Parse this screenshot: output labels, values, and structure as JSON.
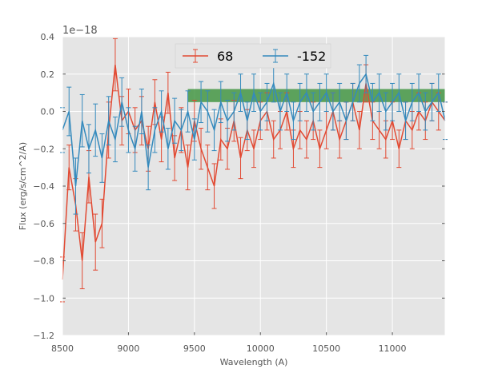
{
  "chart_data": {
    "type": "line",
    "title": "",
    "xlabel": "Wavelength (A)",
    "ylabel": "Flux (erg/s/cm^2/A)",
    "y_offset_text": "1e−18",
    "xlim": [
      8500,
      11400
    ],
    "ylim": [
      -1.2,
      0.4
    ],
    "x_ticks": [
      8500,
      9000,
      9500,
      10000,
      10500,
      11000
    ],
    "x_tick_labels": [
      "8500",
      "9000",
      "9500",
      "10000",
      "10500",
      "11000"
    ],
    "y_ticks": [
      -1.2,
      -1.0,
      -0.8,
      -0.6,
      -0.4,
      -0.2,
      0.0,
      0.2,
      0.4
    ],
    "y_tick_labels": [
      "−1.2",
      "−1.0",
      "−0.8",
      "−0.6",
      "−0.4",
      "−0.2",
      "0.0",
      "0.2",
      "0.4"
    ],
    "grid": true,
    "legend_position": "top-center",
    "band": {
      "x_range": [
        9450,
        11400
      ],
      "y_range": [
        0.05,
        0.12
      ],
      "color": "#2e8b2e",
      "label": ""
    },
    "series": [
      {
        "name": "68",
        "color": "#e24a33",
        "x": [
          8500,
          8550,
          8600,
          8650,
          8700,
          8750,
          8800,
          8850,
          8900,
          8950,
          9000,
          9050,
          9100,
          9150,
          9200,
          9250,
          9300,
          9350,
          9400,
          9450,
          9500,
          9550,
          9600,
          9650,
          9700,
          9750,
          9800,
          9850,
          9900,
          9950,
          10000,
          10050,
          10100,
          10150,
          10200,
          10250,
          10300,
          10350,
          10400,
          10450,
          10500,
          10550,
          10600,
          10650,
          10700,
          10750,
          10800,
          10850,
          10900,
          10950,
          11000,
          11050,
          11100,
          11150,
          11200,
          11250,
          11300,
          11350,
          11400
        ],
        "y": [
          -0.9,
          -0.3,
          -0.5,
          -0.8,
          -0.35,
          -0.7,
          -0.6,
          -0.1,
          0.25,
          -0.05,
          0.0,
          -0.1,
          -0.05,
          -0.2,
          0.05,
          -0.15,
          0.1,
          -0.25,
          -0.1,
          -0.3,
          -0.05,
          -0.2,
          -0.3,
          -0.4,
          -0.15,
          -0.2,
          -0.05,
          -0.25,
          -0.1,
          -0.2,
          -0.05,
          0.0,
          -0.15,
          -0.1,
          0.0,
          -0.2,
          -0.1,
          -0.15,
          -0.05,
          -0.2,
          -0.1,
          0.0,
          -0.15,
          -0.05,
          0.05,
          -0.1,
          0.15,
          -0.05,
          -0.1,
          -0.15,
          -0.05,
          -0.2,
          -0.05,
          -0.1,
          0.0,
          -0.05,
          0.05,
          0.0,
          -0.05
        ],
        "yerr": [
          0.12,
          0.12,
          0.14,
          0.15,
          0.14,
          0.15,
          0.13,
          0.15,
          0.14,
          0.13,
          0.12,
          0.12,
          0.13,
          0.12,
          0.12,
          0.12,
          0.11,
          0.12,
          0.12,
          0.12,
          0.11,
          0.11,
          0.12,
          0.12,
          0.11,
          0.11,
          0.11,
          0.11,
          0.11,
          0.1,
          0.1,
          0.1,
          0.1,
          0.1,
          0.1,
          0.1,
          0.1,
          0.1,
          0.1,
          0.1,
          0.1,
          0.1,
          0.1,
          0.1,
          0.1,
          0.1,
          0.1,
          0.1,
          0.1,
          0.1,
          0.1,
          0.1,
          0.1,
          0.1,
          0.1,
          0.1,
          0.1,
          0.1,
          0.1
        ]
      },
      {
        "name": "-152",
        "color": "#348abd",
        "x": [
          8500,
          8550,
          8600,
          8650,
          8700,
          8750,
          8800,
          8850,
          8900,
          8950,
          9000,
          9050,
          9100,
          9150,
          9200,
          9250,
          9300,
          9350,
          9400,
          9450,
          9500,
          9550,
          9600,
          9650,
          9700,
          9750,
          9800,
          9850,
          9900,
          9950,
          10000,
          10050,
          10100,
          10150,
          10200,
          10250,
          10300,
          10350,
          10400,
          10450,
          10500,
          10550,
          10600,
          10650,
          10700,
          10750,
          10800,
          10850,
          10900,
          10950,
          11000,
          11050,
          11100,
          11150,
          11200,
          11250,
          11300,
          11350,
          11400
        ],
        "y": [
          -0.1,
          0.0,
          -0.4,
          -0.05,
          -0.2,
          -0.1,
          -0.25,
          -0.05,
          -0.15,
          0.05,
          -0.1,
          -0.2,
          0.0,
          -0.3,
          -0.1,
          0.0,
          -0.2,
          -0.05,
          -0.1,
          0.0,
          -0.15,
          0.05,
          0.0,
          -0.1,
          0.05,
          -0.05,
          0.0,
          0.1,
          -0.05,
          0.1,
          0.0,
          0.05,
          0.15,
          0.0,
          0.1,
          -0.05,
          0.05,
          0.1,
          0.0,
          0.05,
          0.1,
          0.0,
          0.05,
          -0.05,
          0.05,
          0.15,
          0.2,
          0.05,
          0.1,
          0.0,
          0.05,
          0.1,
          -0.05,
          0.05,
          0.1,
          0.0,
          0.05,
          0.1,
          -0.05
        ],
        "yerr": [
          0.12,
          0.13,
          0.15,
          0.14,
          0.13,
          0.14,
          0.13,
          0.13,
          0.12,
          0.13,
          0.12,
          0.12,
          0.12,
          0.12,
          0.12,
          0.11,
          0.11,
          0.12,
          0.11,
          0.11,
          0.11,
          0.11,
          0.11,
          0.11,
          0.11,
          0.11,
          0.1,
          0.1,
          0.1,
          0.1,
          0.1,
          0.1,
          0.1,
          0.1,
          0.1,
          0.1,
          0.1,
          0.1,
          0.1,
          0.1,
          0.1,
          0.1,
          0.1,
          0.1,
          0.1,
          0.1,
          0.1,
          0.1,
          0.1,
          0.1,
          0.1,
          0.1,
          0.1,
          0.1,
          0.1,
          0.1,
          0.1,
          0.1,
          0.1
        ]
      }
    ]
  }
}
